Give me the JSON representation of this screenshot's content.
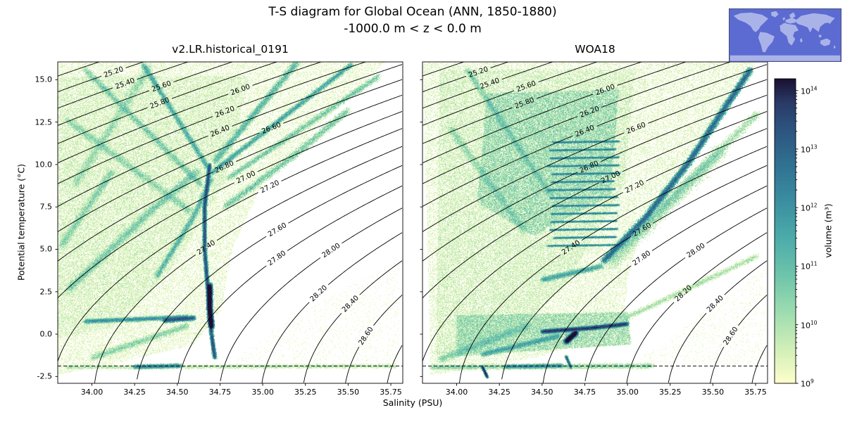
{
  "chart_data": {
    "type": "heatmap",
    "subtype": "T-S volumetric census (2D histogram) with potential-density contours",
    "title": "T-S diagram for Global Ocean (ANN, 1850-1880)",
    "subtitle": "-1000.0 m < z < 0.0 m",
    "xlabel": "Salinity (PSU)",
    "ylabel": "Potential temperature (°C)",
    "xlim": [
      33.8,
      35.82
    ],
    "ylim": [
      -2.9,
      16.05
    ],
    "x_ticks": [
      34.0,
      34.25,
      34.5,
      34.75,
      35.0,
      35.25,
      35.5,
      35.75
    ],
    "y_ticks": [
      -2.5,
      0.0,
      2.5,
      5.0,
      7.5,
      10.0,
      12.5,
      15.0
    ],
    "grid": false,
    "contours": {
      "quantity": "potential density sigma-theta (kg/m3 - 1000)",
      "start": 24.6,
      "end": 29.0,
      "step": 0.2,
      "labeled_levels": [
        25.2,
        25.4,
        25.6,
        25.8,
        26.0,
        26.2,
        26.4,
        26.6,
        26.8,
        27.0,
        27.2,
        27.4,
        27.6,
        27.8,
        28.0,
        28.2,
        28.4,
        28.6
      ],
      "line_color": "#000000"
    },
    "freezing_line_T": -1.88,
    "freezing_line_color": "#111111",
    "colorbar": {
      "label": "volume (m³)",
      "scale": "log",
      "tick_exponents": [
        9,
        10,
        11,
        12,
        13,
        14
      ],
      "exponent_top": 14.2,
      "colormap_stops": [
        [
          0.0,
          "#fdfecb"
        ],
        [
          0.1,
          "#d5f0b9"
        ],
        [
          0.22,
          "#a2deb0"
        ],
        [
          0.35,
          "#6ec5aa"
        ],
        [
          0.48,
          "#4baaaa"
        ],
        [
          0.6,
          "#3a8da0"
        ],
        [
          0.72,
          "#307091"
        ],
        [
          0.84,
          "#2c527d"
        ],
        [
          0.92,
          "#2a3a67"
        ],
        [
          1.0,
          "#1a1030"
        ]
      ]
    },
    "inset": {
      "name": "global-ocean-region-map",
      "ocean_color": "#5c6bd1",
      "land_color": "#aab3e8",
      "border_color": "#444a6e"
    },
    "panels": [
      {
        "name": "model",
        "title": "v2.LR.historical_0191",
        "structures": [
          {
            "kind": "poly",
            "pts": [
              [
                33.8,
                16.05
              ],
              [
                35.72,
                16.05
              ],
              [
                35.3,
                12
              ],
              [
                34.98,
                8.5
              ],
              [
                34.82,
                5
              ],
              [
                34.76,
                1.5
              ],
              [
                34.6,
                -0.6
              ],
              [
                34.2,
                -1.6
              ],
              [
                33.8,
                -2.4
              ]
            ],
            "n": 26000,
            "w": 0.55
          },
          {
            "kind": "poly",
            "pts": [
              [
                33.8,
                15.2
              ],
              [
                34.92,
                15.2
              ],
              [
                34.78,
                9
              ],
              [
                34.48,
                4
              ],
              [
                34.12,
                0.4
              ],
              [
                33.8,
                -0.2
              ]
            ],
            "n": 16000,
            "w": 0.85
          },
          {
            "kind": "poly",
            "pts": [
              [
                34.82,
                -1.6
              ],
              [
                35.8,
                -1.6
              ],
              [
                35.8,
                4.5
              ],
              [
                35.1,
                0.5
              ]
            ],
            "n": 500,
            "w": 0.5
          },
          {
            "kind": "line",
            "pts": [
              [
                33.85,
                -1.95
              ],
              [
                35.78,
                -1.88
              ]
            ],
            "n": 2200,
            "w": 0.8,
            "spread": 1.5
          },
          {
            "kind": "line",
            "pts": [
              [
                34.25,
                -1.93
              ],
              [
                34.52,
                -1.87
              ]
            ],
            "n": 1400,
            "w": 2.5,
            "spread": 1.5
          },
          {
            "kind": "line",
            "pts": [
              [
                34.72,
                -1.4
              ],
              [
                34.7,
                0
              ],
              [
                34.68,
                2.5
              ],
              [
                34.66,
                5
              ],
              [
                34.66,
                7.5
              ],
              [
                34.69,
                10
              ]
            ],
            "n": 9000,
            "w": 4,
            "spread": 1.3
          },
          {
            "kind": "line",
            "pts": [
              [
                34.7,
                0.4
              ],
              [
                34.69,
                1.5
              ],
              [
                34.69,
                2.9
              ]
            ],
            "n": 5200,
            "w": 8,
            "spread": 1.8
          },
          {
            "kind": "line",
            "pts": [
              [
                34.7,
                9.5
              ],
              [
                35.52,
                15.9
              ]
            ],
            "n": 3200,
            "w": 2.4,
            "spread": 1.8
          },
          {
            "kind": "line",
            "pts": [
              [
                34.72,
                10.2
              ],
              [
                35.2,
                16.0
              ]
            ],
            "n": 2400,
            "w": 2,
            "spread": 2.5
          },
          {
            "kind": "line",
            "pts": [
              [
                34.8,
                9.2
              ],
              [
                35.68,
                15.2
              ]
            ],
            "n": 2000,
            "w": 1.8,
            "spread": 2
          },
          {
            "kind": "line",
            "pts": [
              [
                34.78,
                7.5
              ],
              [
                35.18,
                10.5
              ],
              [
                35.5,
                13.2
              ]
            ],
            "n": 2000,
            "w": 1.8,
            "spread": 2.5
          },
          {
            "kind": "line",
            "pts": [
              [
                34.68,
                9.8
              ],
              [
                34.3,
                15.9
              ]
            ],
            "n": 2400,
            "w": 2,
            "spread": 2
          },
          {
            "kind": "line",
            "pts": [
              [
                34.64,
                8.8
              ],
              [
                33.96,
                15.6
              ]
            ],
            "n": 2000,
            "w": 1.7,
            "spread": 2.5
          },
          {
            "kind": "line",
            "pts": [
              [
                34.58,
                7.2
              ],
              [
                33.86,
                12.6
              ]
            ],
            "n": 1800,
            "w": 1.5,
            "spread": 3
          },
          {
            "kind": "line",
            "pts": [
              [
                33.86,
                2.6
              ],
              [
                34.36,
                7.4
              ],
              [
                34.62,
                9.6
              ]
            ],
            "n": 2800,
            "w": 1.6,
            "spread": 3
          },
          {
            "kind": "line",
            "pts": [
              [
                34.38,
                3.4
              ],
              [
                34.6,
                7.0
              ],
              [
                34.7,
                9.2
              ]
            ],
            "n": 2000,
            "w": 1.9,
            "spread": 2
          },
          {
            "kind": "line",
            "pts": [
              [
                33.96,
                0.75
              ],
              [
                34.56,
                1.0
              ]
            ],
            "n": 2800,
            "w": 2.2,
            "spread": 1.6
          },
          {
            "kind": "line",
            "pts": [
              [
                34.42,
                0.8
              ],
              [
                34.6,
                0.95
              ]
            ],
            "n": 1300,
            "w": 4.5,
            "spread": 1.6
          },
          {
            "kind": "line",
            "pts": [
              [
                34.0,
                -1.4
              ],
              [
                34.56,
                0.5
              ]
            ],
            "n": 1400,
            "w": 1.2,
            "spread": 2.5
          },
          {
            "kind": "line",
            "pts": [
              [
                33.9,
                8.8
              ],
              [
                34.34,
                15.8
              ]
            ],
            "n": 1600,
            "w": 1.4,
            "spread": 3.5
          },
          {
            "kind": "line",
            "pts": [
              [
                33.82,
                5.2
              ],
              [
                34.12,
                9.6
              ]
            ],
            "n": 1400,
            "w": 1.3,
            "spread": 3
          }
        ]
      },
      {
        "name": "woa18",
        "title": "WOA18",
        "structures": [
          {
            "kind": "poly",
            "pts": [
              [
                33.8,
                16.05
              ],
              [
                35.76,
                16.05
              ],
              [
                35.5,
                12
              ],
              [
                35.1,
                7
              ],
              [
                35.0,
                3.2
              ],
              [
                34.98,
                0.4
              ],
              [
                34.5,
                -1.3
              ],
              [
                33.85,
                -2.45
              ]
            ],
            "n": 30000,
            "w": 0.6
          },
          {
            "kind": "poly",
            "pts": [
              [
                33.9,
                15.6
              ],
              [
                35.05,
                15.6
              ],
              [
                34.98,
                8.8
              ],
              [
                34.62,
                2.6
              ],
              [
                34.2,
                -0.8
              ],
              [
                33.88,
                -1.2
              ]
            ],
            "n": 20000,
            "w": 0.9
          },
          {
            "kind": "poly",
            "pts": [
              [
                34.18,
                14.2
              ],
              [
                34.95,
                14.4
              ],
              [
                34.9,
                8.2
              ],
              [
                34.45,
                5.8
              ],
              [
                34.12,
                7.8
              ]
            ],
            "n": 15000,
            "w": 2.2
          },
          {
            "kind": "striation-set",
            "S0": 34.52,
            "S1": 34.96,
            "T0": 5.2,
            "T1": 11.3,
            "count": 14,
            "n": 1100,
            "w": 2.4,
            "spread": 0.7
          },
          {
            "kind": "line",
            "pts": [
              [
                34.86,
                4.3
              ],
              [
                35.1,
                6.8
              ],
              [
                35.35,
                10
              ],
              [
                35.72,
                15.6
              ]
            ],
            "n": 9000,
            "w": 5,
            "spread": 2.2
          },
          {
            "kind": "line",
            "pts": [
              [
                34.9,
                4.2
              ],
              [
                35.55,
                10.8
              ]
            ],
            "n": 2400,
            "w": 1.6,
            "spread": 5
          },
          {
            "kind": "line",
            "pts": [
              [
                34.95,
                5.0
              ],
              [
                35.76,
                13.0
              ]
            ],
            "n": 1800,
            "w": 1.5,
            "spread": 3
          },
          {
            "kind": "line",
            "pts": [
              [
                34.5,
                0.15
              ],
              [
                34.78,
                0.35
              ],
              [
                35.0,
                0.6
              ]
            ],
            "n": 5500,
            "w": 4.5,
            "spread": 1.4
          },
          {
            "kind": "line",
            "pts": [
              [
                34.64,
                -0.45
              ],
              [
                34.7,
                0.1
              ]
            ],
            "n": 2600,
            "w": 6,
            "spread": 1.8
          },
          {
            "kind": "poly",
            "pts": [
              [
                34.0,
                1.1
              ],
              [
                35.0,
                1.3
              ],
              [
                35.02,
                -0.6
              ],
              [
                34.0,
                -1.3
              ]
            ],
            "n": 9000,
            "w": 1.5
          },
          {
            "kind": "line",
            "pts": [
              [
                33.85,
                -1.95
              ],
              [
                35.15,
                -1.88
              ]
            ],
            "n": 3000,
            "w": 1.0,
            "spread": 1.8
          },
          {
            "kind": "line",
            "pts": [
              [
                34.28,
                -1.92
              ],
              [
                34.62,
                -1.86
              ]
            ],
            "n": 1400,
            "w": 2.2,
            "spread": 1.5
          },
          {
            "kind": "line",
            "pts": [
              [
                34.15,
                -1.9
              ],
              [
                34.18,
                -2.55
              ]
            ],
            "n": 900,
            "w": 3,
            "spread": 0.9
          },
          {
            "kind": "line",
            "pts": [
              [
                34.64,
                -1.3
              ],
              [
                34.67,
                -2.0
              ]
            ],
            "n": 600,
            "w": 2,
            "spread": 0.9
          },
          {
            "kind": "line",
            "pts": [
              [
                33.9,
                -1.5
              ],
              [
                34.42,
                0.5
              ]
            ],
            "n": 1800,
            "w": 1.2,
            "spread": 3
          },
          {
            "kind": "line",
            "pts": [
              [
                34.15,
                -1.2
              ],
              [
                34.6,
                -0.1
              ]
            ],
            "n": 1800,
            "w": 2,
            "spread": 2
          },
          {
            "kind": "line",
            "pts": [
              [
                34.55,
                8.2
              ],
              [
                34.06,
                15.6
              ]
            ],
            "n": 1900,
            "w": 1.5,
            "spread": 2.5
          },
          {
            "kind": "line",
            "pts": [
              [
                34.4,
                6.0
              ],
              [
                33.96,
                12.2
              ]
            ],
            "n": 1500,
            "w": 1.3,
            "spread": 3
          },
          {
            "kind": "line",
            "pts": [
              [
                34.98,
                0.9
              ],
              [
                35.76,
                4.6
              ]
            ],
            "n": 1300,
            "w": 0.9,
            "spread": 2
          },
          {
            "kind": "poly",
            "pts": [
              [
                35.02,
                -1.8
              ],
              [
                35.8,
                -1.8
              ],
              [
                35.8,
                3.8
              ]
            ],
            "n": 400,
            "w": 0.5
          },
          {
            "kind": "line",
            "pts": [
              [
                34.5,
                3.2
              ],
              [
                34.85,
                4.0
              ]
            ],
            "n": 1500,
            "w": 2,
            "spread": 2
          }
        ]
      }
    ]
  }
}
